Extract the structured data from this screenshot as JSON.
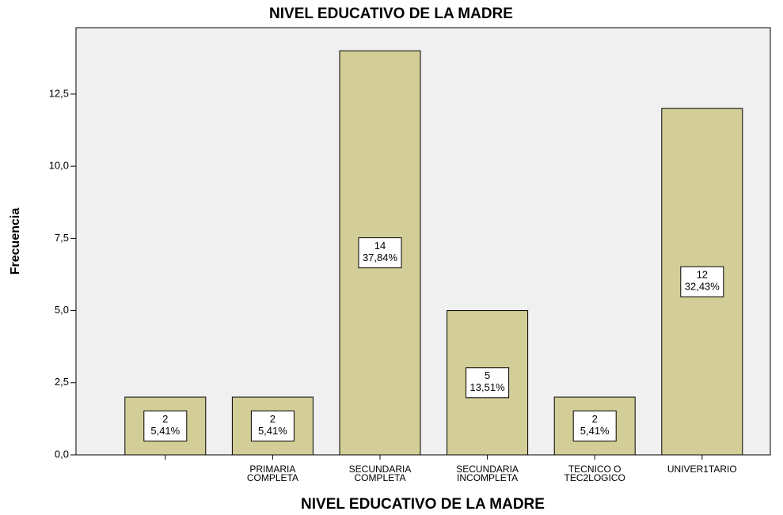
{
  "chart_data": {
    "type": "bar",
    "title": "NIVEL EDUCATIVO DE LA MADRE",
    "x_label": "NIVEL EDUCATIVO DE LA MADRE",
    "y_label": "Frecuencia",
    "categories": [
      null,
      "PRIMARIA\nCOMPLETA",
      "SECUNDARIA\nCOMPLETA",
      "SECUNDARIA\nINCOMPLETA",
      "TECNICO O\nTEC2LOGICO",
      "UNIVER1TARIO"
    ],
    "values": [
      2,
      2,
      14,
      5,
      2,
      12
    ],
    "percent_values": [
      5.41,
      5.41,
      37.84,
      13.51,
      5.41,
      32.43
    ],
    "percent_labels": [
      "5,41%",
      "5,41%",
      "37,84%",
      "13,51%",
      "5,41%",
      "32,43%"
    ],
    "color": "#d3ce97",
    "ylim": [
      0,
      14.8
    ],
    "yticks": [
      {
        "value": 0,
        "label": "0,0"
      },
      {
        "value": 2.5,
        "label": "2,5"
      },
      {
        "value": 5,
        "label": "5,0"
      },
      {
        "value": 7.5,
        "label": "7,5"
      },
      {
        "value": 10,
        "label": "10,0"
      },
      {
        "value": 12.5,
        "label": "12,5"
      }
    ]
  }
}
